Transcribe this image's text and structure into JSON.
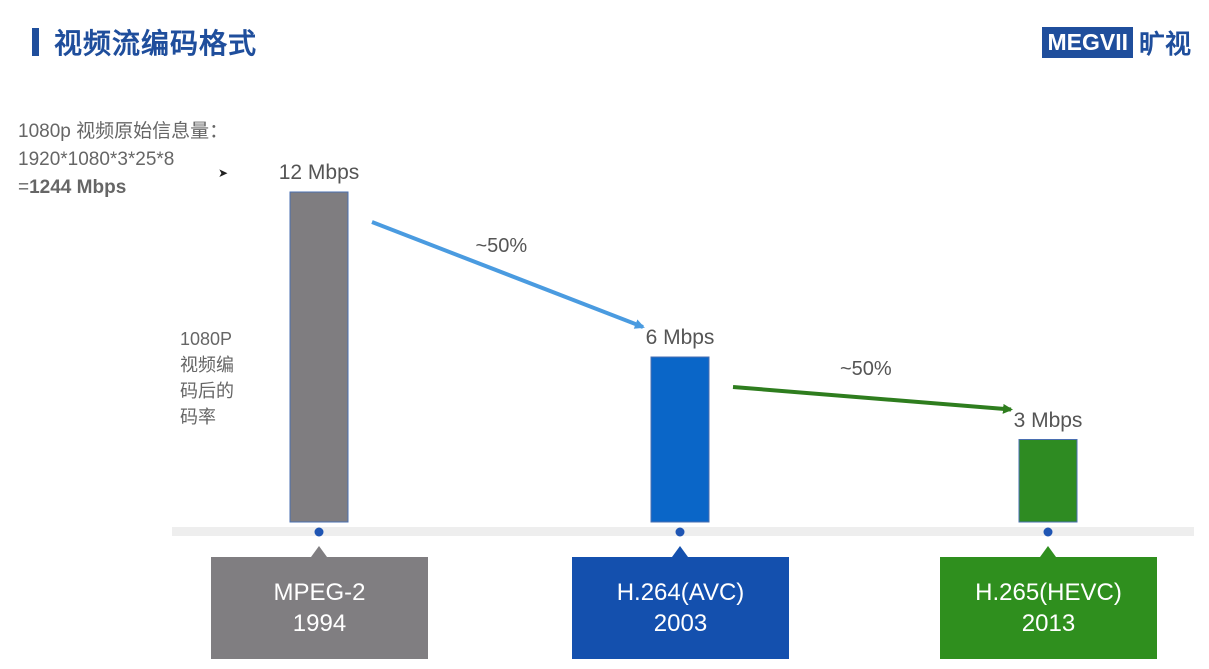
{
  "header": {
    "title": "视频流编码格式",
    "logo_text": "MEGVII",
    "logo_cn": "旷视"
  },
  "raw_info": {
    "line1": "1080p 视频原始信息量：",
    "line2": "1920*1080*3*25*8",
    "line3_prefix": "=",
    "line3_value": "1244 Mbps"
  },
  "chart_data": {
    "type": "bar",
    "ylabel": "1080P视频编码后的码率",
    "categories": [
      {
        "name": "MPEG-2",
        "year": "1994"
      },
      {
        "name": "H.264(AVC)",
        "year": "2003"
      },
      {
        "name": "H.265(HEVC)",
        "year": "2013"
      }
    ],
    "values": [
      12,
      6,
      3
    ],
    "value_labels": [
      "12 Mbps",
      "6 Mbps",
      "3 Mbps"
    ],
    "colors": [
      "#7f7d80",
      "#0a66c8",
      "#2e8b22"
    ],
    "tick_box_colors": [
      "#807e81",
      "#1450ae",
      "#2f8f1e"
    ],
    "ylim": [
      0,
      12
    ],
    "annotations": [
      {
        "text": "~50%",
        "from": 0,
        "to": 1,
        "color": "#4a9be0"
      },
      {
        "text": "~50%",
        "from": 1,
        "to": 2,
        "color": "#2e7d1e"
      }
    ]
  }
}
